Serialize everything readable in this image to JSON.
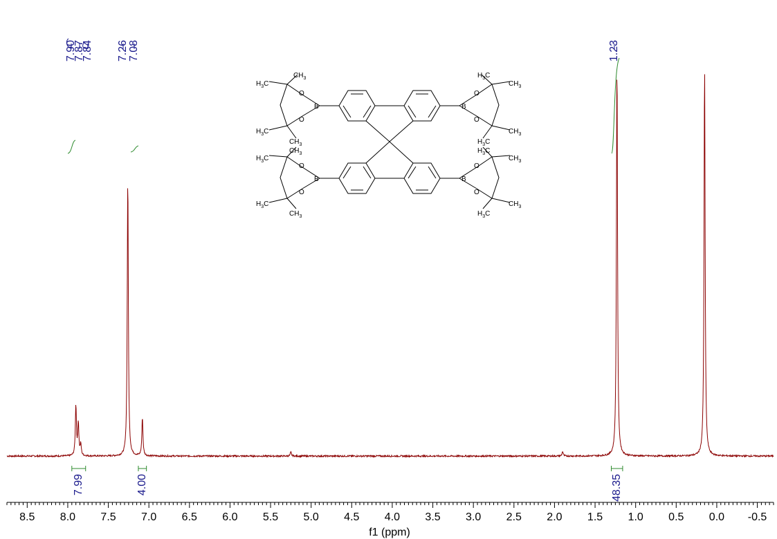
{
  "chart_data": {
    "type": "line",
    "xlabel": "f1 (ppm)",
    "xlim": [
      8.75,
      -0.7
    ],
    "x_ticks": [
      "8.5",
      "8.0",
      "7.5",
      "7.0",
      "6.5",
      "6.0",
      "5.5",
      "5.0",
      "4.5",
      "4.0",
      "3.5",
      "3.0",
      "2.5",
      "2.0",
      "1.5",
      "1.0",
      "0.5",
      "0.0",
      "-0.5"
    ],
    "x_tick_values": [
      8.5,
      8.0,
      7.5,
      7.0,
      6.5,
      6.0,
      5.5,
      5.0,
      4.5,
      4.0,
      3.5,
      3.0,
      2.5,
      2.0,
      1.5,
      1.0,
      0.5,
      0.0,
      -0.5
    ],
    "grid": false,
    "colors": {
      "spectrum": "#8b0000",
      "peak_labels": "#1a1a8c",
      "integrals": "#2e8b2e",
      "axis": "#000000"
    },
    "peak_labels": [
      {
        "text": "7.90",
        "ppm": 7.9
      },
      {
        "text": "7.87",
        "ppm": 7.87
      },
      {
        "text": "7.84",
        "ppm": 7.84
      },
      {
        "text": "7.26",
        "ppm": 7.26
      },
      {
        "text": "7.08",
        "ppm": 7.08
      },
      {
        "text": "1.23",
        "ppm": 1.23
      }
    ],
    "peaks": [
      {
        "ppm": 7.9,
        "height": 0.128
      },
      {
        "ppm": 7.87,
        "height": 0.083
      },
      {
        "ppm": 7.84,
        "height": 0.028
      },
      {
        "ppm": 7.26,
        "height": 0.705
      },
      {
        "ppm": 7.08,
        "height": 0.097
      },
      {
        "ppm": 5.25,
        "height": 0.01
      },
      {
        "ppm": 1.9,
        "height": 0.012
      },
      {
        "ppm": 1.23,
        "height": 0.995
      },
      {
        "ppm": 0.15,
        "height": 0.99
      }
    ],
    "integrals": [
      {
        "label": "7.99",
        "from": 7.95,
        "to": 7.78
      },
      {
        "label": "4.00",
        "from": 7.13,
        "to": 7.03
      },
      {
        "label": "48.35",
        "from": 1.3,
        "to": 1.16
      }
    ]
  },
  "molecule": {
    "atoms": {
      "ch3": "CH3",
      "h3c": "H3C",
      "oxygen": "O",
      "boron": "B"
    }
  }
}
